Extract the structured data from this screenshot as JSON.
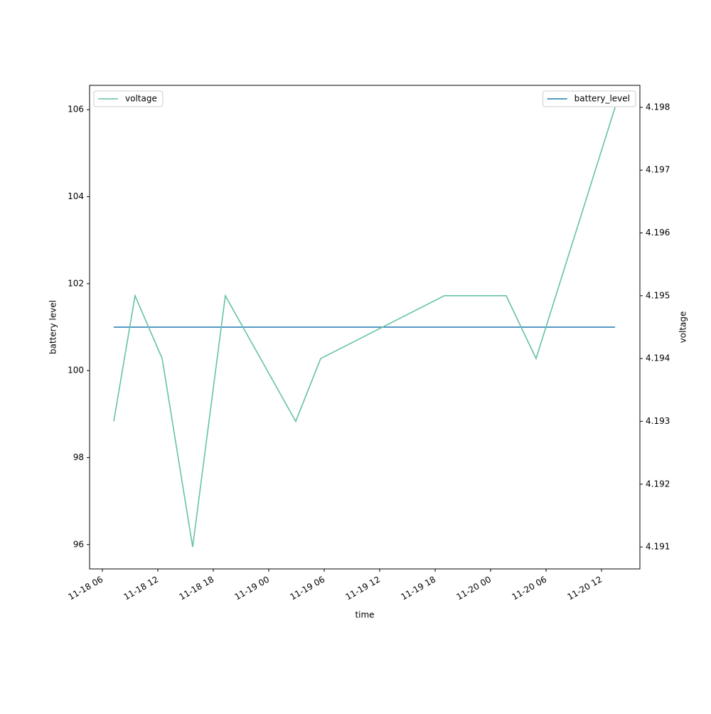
{
  "chart_data": {
    "type": "line",
    "x": [
      "11-18 07:14",
      "11-18 09:32",
      "11-18 12:28",
      "11-18 15:46",
      "11-18 19:18",
      "11-19 02:55",
      "11-19 05:37",
      "11-19 19:00",
      "11-20 01:41",
      "11-20 04:55",
      "11-20 13:28"
    ],
    "series": [
      {
        "name": "battery_level",
        "color": "#1f77b4",
        "axis": "y",
        "values": [
          101,
          101,
          101,
          101,
          101,
          101,
          101,
          101,
          101,
          101,
          101
        ]
      },
      {
        "name": "voltage",
        "color": "#66c2a5",
        "axis": "y2",
        "values": [
          4.193,
          4.195,
          4.194,
          4.191,
          4.195,
          4.193,
          4.194,
          4.195,
          4.195,
          4.194,
          4.198
        ]
      }
    ],
    "xlabel": "time",
    "ylabel": "battery level",
    "y2label": "voltage",
    "xlim": [
      "11-18 04:37",
      "11-20 16:09"
    ],
    "xticks": [
      {
        "value": "11-18 06:00",
        "label": "11-18 06"
      },
      {
        "value": "11-18 12:00",
        "label": "11-18 12"
      },
      {
        "value": "11-18 18:00",
        "label": "11-18 18"
      },
      {
        "value": "11-19 00:00",
        "label": "11-19 00"
      },
      {
        "value": "11-19 06:00",
        "label": "11-19 06"
      },
      {
        "value": "11-19 12:00",
        "label": "11-19 12"
      },
      {
        "value": "11-19 18:00",
        "label": "11-19 18"
      },
      {
        "value": "11-20 00:00",
        "label": "11-20 00"
      },
      {
        "value": "11-20 06:00",
        "label": "11-20 06"
      },
      {
        "value": "11-20 12:00",
        "label": "11-20 12"
      }
    ],
    "ylim": [
      95.44,
      106.56
    ],
    "yticks": [
      96,
      98,
      100,
      102,
      104,
      106
    ],
    "y2lim": [
      4.19065,
      4.19835
    ],
    "y2ticks": [
      4.191,
      4.192,
      4.193,
      4.194,
      4.195,
      4.196,
      4.197,
      4.198
    ],
    "legend_loc": {
      "y": "upper right",
      "y2": "upper left"
    }
  }
}
